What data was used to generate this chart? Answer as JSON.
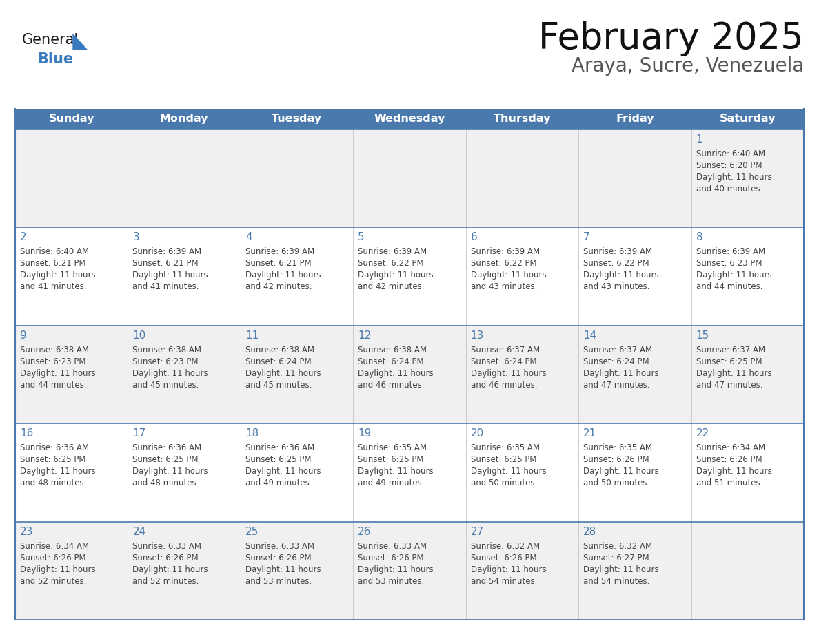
{
  "title": "February 2025",
  "subtitle": "Araya, Sucre, Venezuela",
  "days_of_week": [
    "Sunday",
    "Monday",
    "Tuesday",
    "Wednesday",
    "Thursday",
    "Friday",
    "Saturday"
  ],
  "header_bg": "#4a7aad",
  "header_text": "#ffffff",
  "row_bg_even": "#f0f0f0",
  "row_bg_odd": "#ffffff",
  "border_color": "#4a7aad",
  "day_number_color": "#4a7aad",
  "text_color": "#444444",
  "title_color": "#111111",
  "subtitle_color": "#555555",
  "calendar_data": [
    [
      null,
      null,
      null,
      null,
      null,
      null,
      {
        "day": 1,
        "sunrise": "6:40 AM",
        "sunset": "6:20 PM",
        "daylight": "11 hours\nand 40 minutes."
      }
    ],
    [
      {
        "day": 2,
        "sunrise": "6:40 AM",
        "sunset": "6:21 PM",
        "daylight": "11 hours\nand 41 minutes."
      },
      {
        "day": 3,
        "sunrise": "6:39 AM",
        "sunset": "6:21 PM",
        "daylight": "11 hours\nand 41 minutes."
      },
      {
        "day": 4,
        "sunrise": "6:39 AM",
        "sunset": "6:21 PM",
        "daylight": "11 hours\nand 42 minutes."
      },
      {
        "day": 5,
        "sunrise": "6:39 AM",
        "sunset": "6:22 PM",
        "daylight": "11 hours\nand 42 minutes."
      },
      {
        "day": 6,
        "sunrise": "6:39 AM",
        "sunset": "6:22 PM",
        "daylight": "11 hours\nand 43 minutes."
      },
      {
        "day": 7,
        "sunrise": "6:39 AM",
        "sunset": "6:22 PM",
        "daylight": "11 hours\nand 43 minutes."
      },
      {
        "day": 8,
        "sunrise": "6:39 AM",
        "sunset": "6:23 PM",
        "daylight": "11 hours\nand 44 minutes."
      }
    ],
    [
      {
        "day": 9,
        "sunrise": "6:38 AM",
        "sunset": "6:23 PM",
        "daylight": "11 hours\nand 44 minutes."
      },
      {
        "day": 10,
        "sunrise": "6:38 AM",
        "sunset": "6:23 PM",
        "daylight": "11 hours\nand 45 minutes."
      },
      {
        "day": 11,
        "sunrise": "6:38 AM",
        "sunset": "6:24 PM",
        "daylight": "11 hours\nand 45 minutes."
      },
      {
        "day": 12,
        "sunrise": "6:38 AM",
        "sunset": "6:24 PM",
        "daylight": "11 hours\nand 46 minutes."
      },
      {
        "day": 13,
        "sunrise": "6:37 AM",
        "sunset": "6:24 PM",
        "daylight": "11 hours\nand 46 minutes."
      },
      {
        "day": 14,
        "sunrise": "6:37 AM",
        "sunset": "6:24 PM",
        "daylight": "11 hours\nand 47 minutes."
      },
      {
        "day": 15,
        "sunrise": "6:37 AM",
        "sunset": "6:25 PM",
        "daylight": "11 hours\nand 47 minutes."
      }
    ],
    [
      {
        "day": 16,
        "sunrise": "6:36 AM",
        "sunset": "6:25 PM",
        "daylight": "11 hours\nand 48 minutes."
      },
      {
        "day": 17,
        "sunrise": "6:36 AM",
        "sunset": "6:25 PM",
        "daylight": "11 hours\nand 48 minutes."
      },
      {
        "day": 18,
        "sunrise": "6:36 AM",
        "sunset": "6:25 PM",
        "daylight": "11 hours\nand 49 minutes."
      },
      {
        "day": 19,
        "sunrise": "6:35 AM",
        "sunset": "6:25 PM",
        "daylight": "11 hours\nand 49 minutes."
      },
      {
        "day": 20,
        "sunrise": "6:35 AM",
        "sunset": "6:25 PM",
        "daylight": "11 hours\nand 50 minutes."
      },
      {
        "day": 21,
        "sunrise": "6:35 AM",
        "sunset": "6:26 PM",
        "daylight": "11 hours\nand 50 minutes."
      },
      {
        "day": 22,
        "sunrise": "6:34 AM",
        "sunset": "6:26 PM",
        "daylight": "11 hours\nand 51 minutes."
      }
    ],
    [
      {
        "day": 23,
        "sunrise": "6:34 AM",
        "sunset": "6:26 PM",
        "daylight": "11 hours\nand 52 minutes."
      },
      {
        "day": 24,
        "sunrise": "6:33 AM",
        "sunset": "6:26 PM",
        "daylight": "11 hours\nand 52 minutes."
      },
      {
        "day": 25,
        "sunrise": "6:33 AM",
        "sunset": "6:26 PM",
        "daylight": "11 hours\nand 53 minutes."
      },
      {
        "day": 26,
        "sunrise": "6:33 AM",
        "sunset": "6:26 PM",
        "daylight": "11 hours\nand 53 minutes."
      },
      {
        "day": 27,
        "sunrise": "6:32 AM",
        "sunset": "6:26 PM",
        "daylight": "11 hours\nand 54 minutes."
      },
      {
        "day": 28,
        "sunrise": "6:32 AM",
        "sunset": "6:27 PM",
        "daylight": "11 hours\nand 54 minutes."
      },
      null
    ]
  ],
  "logo_general_color": "#1a1a1a",
  "logo_blue_color": "#3a7abf",
  "logo_triangle_color": "#3a7abf"
}
